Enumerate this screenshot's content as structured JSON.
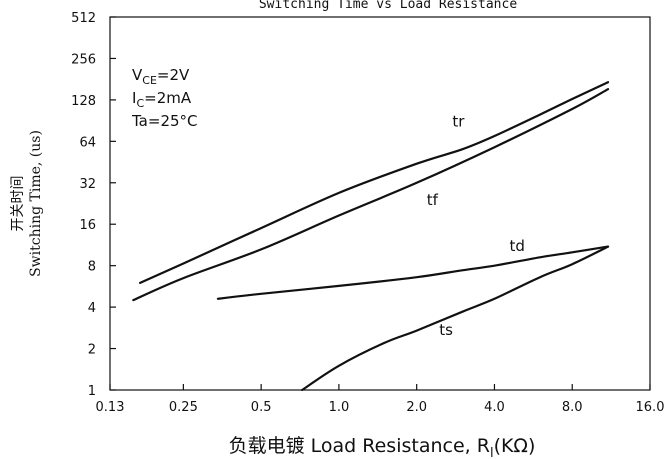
{
  "chart_data": {
    "type": "line",
    "title": "Switching Time vs Load Resistance",
    "xlabel_cn": "负载电镀",
    "xlabel_en": "Load Resistance, R",
    "xlabel_sub": "l",
    "xlabel_unit": "(KΩ)",
    "ylabel_cn": "开关时间",
    "ylabel_en": "Switching Time, (us)",
    "x_scale": "log2",
    "y_scale": "log2",
    "xlim": [
      0.13,
      16.0
    ],
    "ylim": [
      1,
      512
    ],
    "x_ticks": [
      0.13,
      0.25,
      0.5,
      1.0,
      2.0,
      4.0,
      8.0,
      16.0
    ],
    "x_tick_labels": [
      "0.13",
      "0.25",
      "0.5",
      "1.0",
      "2.0",
      "4.0",
      "8.0",
      "16.0"
    ],
    "y_ticks": [
      1,
      2,
      4,
      8,
      16,
      32,
      64,
      128,
      256,
      512
    ],
    "y_tick_labels": [
      "1",
      "2",
      "4",
      "8",
      "16",
      "32",
      "64",
      "128",
      "256",
      "512"
    ],
    "conditions": [
      {
        "base": "V",
        "sub": "CE",
        "rest": "=2V"
      },
      {
        "base": "I",
        "sub": "C",
        "rest": "=2mA"
      },
      {
        "base": "Ta=25",
        "sub": "",
        "rest": "°C"
      }
    ],
    "series": [
      {
        "name": "tr",
        "x": [
          0.17,
          0.25,
          0.5,
          1.0,
          2.0,
          3.0,
          4.0,
          6.0,
          8.0,
          11.0
        ],
        "y": [
          6.0,
          8.3,
          15.0,
          27.0,
          44.0,
          56.0,
          70.0,
          100.0,
          130.0,
          172.0
        ]
      },
      {
        "name": "tf",
        "x": [
          0.16,
          0.25,
          0.5,
          1.0,
          2.0,
          4.0,
          8.0,
          11.0
        ],
        "y": [
          4.5,
          6.5,
          10.5,
          18.5,
          32.0,
          58.0,
          110.0,
          153.0
        ]
      },
      {
        "name": "td",
        "x": [
          0.34,
          0.5,
          1.0,
          2.0,
          3.0,
          4.0,
          6.0,
          8.0,
          11.0
        ],
        "y": [
          4.6,
          5.0,
          5.7,
          6.6,
          7.4,
          8.0,
          9.2,
          10.0,
          11.0
        ]
      },
      {
        "name": "ts",
        "x": [
          0.72,
          1.0,
          1.5,
          2.0,
          3.0,
          4.0,
          6.0,
          8.0,
          11.0
        ],
        "y": [
          1.0,
          1.5,
          2.2,
          2.7,
          3.7,
          4.6,
          6.6,
          8.2,
          11.0
        ]
      }
    ],
    "series_label_positions": [
      {
        "name": "tr",
        "x": 2.9,
        "y": 82
      },
      {
        "name": "tf",
        "x": 2.3,
        "y": 22
      },
      {
        "name": "td",
        "x": 4.9,
        "y": 10.2
      },
      {
        "name": "ts",
        "x": 2.6,
        "y": 2.5
      }
    ],
    "grid": false,
    "legend": "none"
  }
}
